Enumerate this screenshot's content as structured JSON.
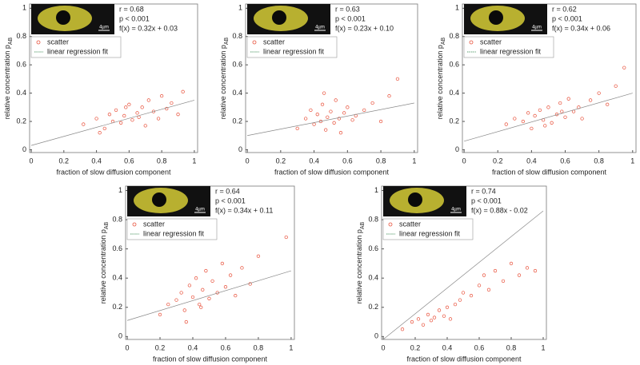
{
  "chart_data": [
    {
      "type": "scatter",
      "annotations": [
        "r = 0.68",
        "p < 0.001",
        "f(x) = 0.32x + 0.03"
      ],
      "scale_label": "4µm",
      "xlabel": "fraction of slow diffusion component",
      "ylabel": "relative concentration p",
      "ylabel_sub": "AB",
      "xlim": [
        -0.01,
        1.02
      ],
      "ylim": [
        -0.02,
        1.03
      ],
      "xticks": [
        0,
        0.2,
        0.4,
        0.6,
        0.8,
        1
      ],
      "yticks": [
        0,
        0.2,
        0.4,
        0.6,
        0.8,
        1
      ],
      "series": [
        {
          "name": "scatter",
          "mark": "circle",
          "color": "#e8503a",
          "x": [
            0.32,
            0.4,
            0.45,
            0.48,
            0.5,
            0.52,
            0.55,
            0.57,
            0.6,
            0.62,
            0.65,
            0.68,
            0.7,
            0.72,
            0.75,
            0.78,
            0.8,
            0.83,
            0.86,
            0.9,
            0.93,
            0.42,
            0.58,
            0.66
          ],
          "values": [
            0.18,
            0.22,
            0.15,
            0.25,
            0.2,
            0.28,
            0.19,
            0.24,
            0.32,
            0.21,
            0.26,
            0.3,
            0.17,
            0.35,
            0.27,
            0.22,
            0.38,
            0.29,
            0.33,
            0.25,
            0.41,
            0.12,
            0.3,
            0.23
          ]
        },
        {
          "name": "linear regression fit",
          "mark": "line",
          "color": "#5a9e6f",
          "x": [
            0,
            1
          ],
          "values": [
            0.03,
            0.35
          ]
        }
      ]
    },
    {
      "type": "scatter",
      "annotations": [
        "r = 0.63",
        "p < 0.001",
        "f(x) = 0.23x + 0.10"
      ],
      "scale_label": "4µm",
      "xlabel": "fraction of slow diffusion component",
      "ylabel": "relative concentration p",
      "ylabel_sub": "AB",
      "xlim": [
        -0.01,
        1.02
      ],
      "ylim": [
        -0.02,
        1.03
      ],
      "xticks": [
        0,
        0.2,
        0.4,
        0.6,
        0.8,
        1
      ],
      "yticks": [
        0,
        0.2,
        0.4,
        0.6,
        0.8,
        1
      ],
      "series": [
        {
          "name": "scatter",
          "mark": "circle",
          "color": "#e8503a",
          "x": [
            0.3,
            0.35,
            0.38,
            0.4,
            0.42,
            0.44,
            0.45,
            0.47,
            0.48,
            0.5,
            0.52,
            0.53,
            0.55,
            0.58,
            0.6,
            0.63,
            0.65,
            0.7,
            0.75,
            0.8,
            0.85,
            0.9,
            0.46,
            0.56
          ],
          "values": [
            0.15,
            0.22,
            0.28,
            0.18,
            0.25,
            0.2,
            0.32,
            0.14,
            0.23,
            0.27,
            0.19,
            0.35,
            0.22,
            0.26,
            0.3,
            0.21,
            0.24,
            0.28,
            0.33,
            0.2,
            0.38,
            0.5,
            0.4,
            0.12
          ]
        },
        {
          "name": "linear regression fit",
          "mark": "line",
          "color": "#5a9e6f",
          "x": [
            0,
            1
          ],
          "values": [
            0.1,
            0.33
          ]
        }
      ]
    },
    {
      "type": "scatter",
      "annotations": [
        "r = 0.62",
        "p < 0.001",
        "f(x) = 0.34x + 0.06"
      ],
      "scale_label": "4µm",
      "xlabel": "fraction of slow diffusion component",
      "ylabel": "relative concentration p",
      "ylabel_sub": "AB",
      "xlim": [
        -0.01,
        1.02
      ],
      "ylim": [
        -0.02,
        1.03
      ],
      "xticks": [
        0,
        0.2,
        0.4,
        0.6,
        0.8,
        1
      ],
      "yticks": [
        0,
        0.2,
        0.4,
        0.6,
        0.8,
        1
      ],
      "series": [
        {
          "name": "scatter",
          "mark": "circle",
          "color": "#e8503a",
          "x": [
            0.25,
            0.3,
            0.35,
            0.38,
            0.4,
            0.42,
            0.45,
            0.47,
            0.5,
            0.52,
            0.55,
            0.57,
            0.6,
            0.62,
            0.65,
            0.68,
            0.7,
            0.75,
            0.8,
            0.85,
            0.9,
            0.95,
            0.48,
            0.58
          ],
          "values": [
            0.18,
            0.22,
            0.2,
            0.26,
            0.15,
            0.24,
            0.28,
            0.21,
            0.3,
            0.19,
            0.25,
            0.33,
            0.23,
            0.36,
            0.27,
            0.3,
            0.22,
            0.35,
            0.4,
            0.32,
            0.45,
            0.58,
            0.17,
            0.27
          ]
        },
        {
          "name": "linear regression fit",
          "mark": "line",
          "color": "#5a9e6f",
          "x": [
            0,
            1
          ],
          "values": [
            0.06,
            0.4
          ]
        }
      ]
    },
    {
      "type": "scatter",
      "annotations": [
        "r = 0.64",
        "p < 0.001",
        "f(x) = 0.34x + 0.11"
      ],
      "scale_label": "4µm",
      "xlabel": "fraction of slow diffusion component",
      "ylabel": "relative concentration p",
      "ylabel_sub": "AB",
      "xlim": [
        -0.01,
        1.02
      ],
      "ylim": [
        -0.02,
        1.03
      ],
      "xticks": [
        0,
        0.2,
        0.4,
        0.6,
        0.8,
        1
      ],
      "yticks": [
        0,
        0.2,
        0.4,
        0.6,
        0.8,
        1
      ],
      "series": [
        {
          "name": "scatter",
          "mark": "circle",
          "color": "#e8503a",
          "x": [
            0.2,
            0.25,
            0.3,
            0.33,
            0.35,
            0.38,
            0.4,
            0.42,
            0.44,
            0.46,
            0.48,
            0.5,
            0.52,
            0.55,
            0.58,
            0.6,
            0.63,
            0.66,
            0.7,
            0.75,
            0.8,
            0.97,
            0.36,
            0.45
          ],
          "values": [
            0.15,
            0.22,
            0.25,
            0.3,
            0.18,
            0.35,
            0.27,
            0.4,
            0.22,
            0.32,
            0.45,
            0.26,
            0.38,
            0.3,
            0.5,
            0.34,
            0.42,
            0.28,
            0.47,
            0.36,
            0.55,
            0.68,
            0.1,
            0.2
          ]
        },
        {
          "name": "linear regression fit",
          "mark": "line",
          "color": "#5a9e6f",
          "x": [
            0,
            1
          ],
          "values": [
            0.11,
            0.45
          ]
        }
      ]
    },
    {
      "type": "scatter",
      "annotations": [
        "r = 0.74",
        "p < 0.001",
        "f(x) = 0.88x - 0.02"
      ],
      "scale_label": "4µm",
      "xlabel": "fraction of slow diffusion component",
      "ylabel": "relative concentration p",
      "ylabel_sub": "AB",
      "xlim": [
        -0.01,
        1.02
      ],
      "ylim": [
        -0.02,
        1.03
      ],
      "xticks": [
        0,
        0.2,
        0.4,
        0.6,
        0.8,
        1
      ],
      "yticks": [
        0,
        0.2,
        0.4,
        0.6,
        0.8,
        1
      ],
      "series": [
        {
          "name": "scatter",
          "mark": "circle",
          "color": "#e8503a",
          "x": [
            0.12,
            0.18,
            0.22,
            0.25,
            0.28,
            0.3,
            0.32,
            0.35,
            0.38,
            0.4,
            0.42,
            0.45,
            0.48,
            0.5,
            0.55,
            0.6,
            0.63,
            0.66,
            0.7,
            0.75,
            0.8,
            0.85,
            0.9,
            0.95
          ],
          "values": [
            0.05,
            0.1,
            0.12,
            0.08,
            0.15,
            0.11,
            0.13,
            0.18,
            0.14,
            0.2,
            0.12,
            0.22,
            0.25,
            0.3,
            0.28,
            0.35,
            0.42,
            0.32,
            0.45,
            0.38,
            0.5,
            0.42,
            0.47,
            0.45
          ]
        },
        {
          "name": "linear regression fit",
          "mark": "line",
          "color": "#5a9e6f",
          "x": [
            0,
            1
          ],
          "values": [
            -0.02,
            0.86
          ]
        }
      ]
    }
  ]
}
